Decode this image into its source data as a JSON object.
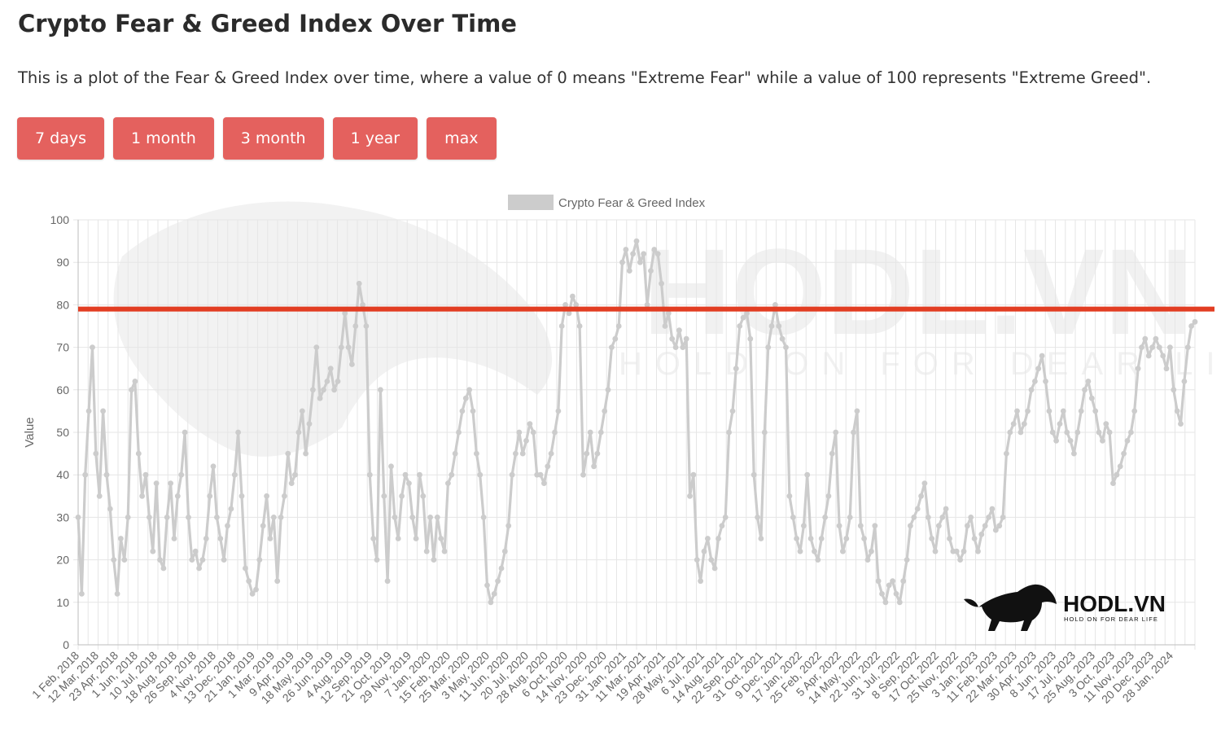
{
  "header": {
    "title": "Crypto Fear & Greed Index Over Time",
    "description": "This is a plot of the Fear & Greed Index over time, where a value of 0 means \"Extreme Fear\" while a value of 100 represents \"Extreme Greed\"."
  },
  "range_buttons": [
    "7 days",
    "1 month",
    "3 month",
    "1 year",
    "max"
  ],
  "watermark": {
    "brand": "HODL.VN",
    "tagline": "HOLD ON FOR DEAR LIFE"
  },
  "colors": {
    "button": "#e4615e",
    "series": "#cccccc",
    "threshold_line": "#e23d22",
    "grid": "#e6e6e6"
  },
  "chart_data": {
    "type": "line",
    "title": "",
    "legend": "top-center",
    "grid": true,
    "xlabel": "",
    "ylabel": "Value",
    "ylim": [
      0,
      100
    ],
    "yticks": [
      0,
      10,
      20,
      30,
      40,
      50,
      60,
      70,
      80,
      90,
      100
    ],
    "x_tick_labels": [
      "1 Feb, 2018",
      "12 Mar, 2018",
      "23 Apr, 2018",
      "1 Jun, 2018",
      "10 Jul, 2018",
      "18 Aug, 2018",
      "26 Sep, 2018",
      "4 Nov, 2018",
      "13 Dec, 2018",
      "21 Jan, 2019",
      "1 Mar, 2019",
      "9 Apr, 2019",
      "18 May, 2019",
      "26 Jun, 2019",
      "4 Aug, 2019",
      "12 Sep, 2019",
      "21 Oct, 2019",
      "29 Nov, 2019",
      "7 Jan, 2020",
      "15 Feb, 2020",
      "25 Mar, 2020",
      "3 May, 2020",
      "11 Jun, 2020",
      "20 Jul, 2020",
      "28 Aug, 2020",
      "6 Oct, 2020",
      "14 Nov, 2020",
      "23 Dec, 2020",
      "31 Jan, 2021",
      "11 Mar, 2021",
      "19 Apr, 2021",
      "28 May, 2021",
      "6 Jul, 2021",
      "14 Aug, 2021",
      "22 Sep, 2021",
      "31 Oct, 2021",
      "9 Dec, 2021",
      "17 Jan, 2022",
      "25 Feb, 2022",
      "5 Apr, 2022",
      "14 May, 2022",
      "22 Jun, 2022",
      "31 Jul, 2022",
      "8 Sep, 2022",
      "17 Oct, 2022",
      "25 Nov, 2022",
      "3 Jan, 2023",
      "11 Feb, 2023",
      "22 Mar, 2023",
      "30 Apr, 2023",
      "8 Jun, 2023",
      "17 Jul, 2023",
      "25 Aug, 2023",
      "3 Oct, 2023",
      "11 Nov, 2023",
      "20 Dec, 2023",
      "28 Jan, 2024"
    ],
    "threshold_line": 79,
    "series": [
      {
        "name": "Crypto Fear & Greed Index",
        "values": [
          30,
          12,
          40,
          55,
          70,
          45,
          35,
          55,
          40,
          32,
          20,
          12,
          25,
          20,
          30,
          60,
          62,
          45,
          35,
          40,
          30,
          22,
          38,
          20,
          18,
          30,
          38,
          25,
          35,
          40,
          50,
          30,
          20,
          22,
          18,
          20,
          25,
          35,
          42,
          30,
          25,
          20,
          28,
          32,
          40,
          50,
          35,
          18,
          15,
          12,
          13,
          20,
          28,
          35,
          25,
          30,
          15,
          30,
          35,
          45,
          38,
          40,
          50,
          55,
          45,
          52,
          60,
          70,
          58,
          60,
          62,
          65,
          60,
          62,
          70,
          78,
          70,
          66,
          75,
          85,
          80,
          75,
          40,
          25,
          20,
          60,
          35,
          15,
          42,
          30,
          25,
          35,
          40,
          38,
          30,
          25,
          40,
          35,
          22,
          30,
          20,
          30,
          25,
          22,
          38,
          40,
          45,
          50,
          55,
          58,
          60,
          55,
          45,
          40,
          30,
          14,
          10,
          12,
          15,
          18,
          22,
          28,
          40,
          45,
          50,
          45,
          48,
          52,
          50,
          40,
          40,
          38,
          42,
          45,
          50,
          55,
          75,
          80,
          78,
          82,
          80,
          75,
          40,
          45,
          50,
          42,
          45,
          50,
          55,
          60,
          70,
          72,
          75,
          90,
          93,
          88,
          92,
          95,
          90,
          92,
          80,
          88,
          93,
          92,
          85,
          75,
          78,
          72,
          70,
          74,
          70,
          72,
          35,
          40,
          20,
          15,
          22,
          25,
          20,
          18,
          25,
          28,
          30,
          50,
          55,
          65,
          75,
          77,
          78,
          72,
          40,
          30,
          25,
          50,
          70,
          75,
          80,
          75,
          72,
          70,
          35,
          30,
          25,
          22,
          28,
          40,
          25,
          22,
          20,
          25,
          30,
          35,
          45,
          50,
          28,
          22,
          25,
          30,
          50,
          55,
          28,
          25,
          20,
          22,
          28,
          15,
          12,
          10,
          14,
          15,
          12,
          10,
          15,
          20,
          28,
          30,
          32,
          35,
          38,
          30,
          25,
          22,
          28,
          30,
          32,
          25,
          22,
          22,
          20,
          22,
          28,
          30,
          25,
          22,
          26,
          28,
          30,
          32,
          27,
          28,
          30,
          45,
          50,
          52,
          55,
          50,
          52,
          55,
          60,
          62,
          65,
          68,
          62,
          55,
          50,
          48,
          52,
          55,
          50,
          48,
          45,
          50,
          55,
          60,
          62,
          58,
          55,
          50,
          48,
          52,
          50,
          38,
          40,
          42,
          45,
          48,
          50,
          55,
          65,
          70,
          72,
          68,
          70,
          72,
          70,
          68,
          65,
          70,
          60,
          55,
          52,
          62,
          70,
          75,
          76
        ]
      }
    ]
  }
}
